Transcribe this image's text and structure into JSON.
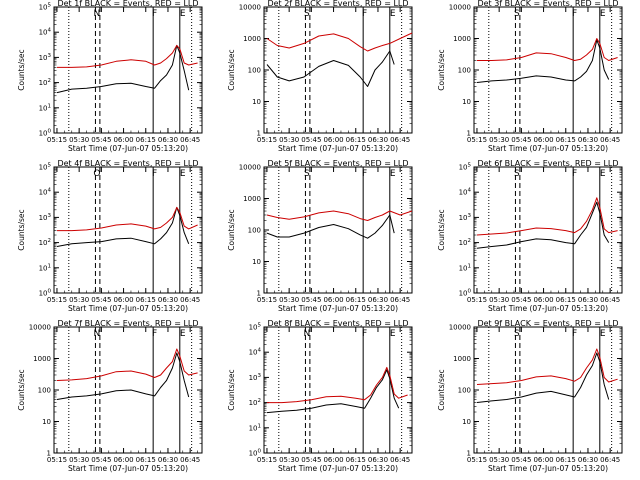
{
  "chart_data": [
    {
      "type": "line",
      "title": "Det 1f BLACK = Events, RED = LLD",
      "ylabel": "Counts/sec",
      "xlabel": "Start Time (07-Jun-07 05:13:20)",
      "yscale": "log",
      "ylim": [
        1,
        100000
      ],
      "y_tick_labels": [
        "10^0",
        "10^1",
        "10^2",
        "10^3",
        "10^4",
        "10^5"
      ],
      "x_tick_labels": [
        "05:15",
        "05:30",
        "05:45",
        "06:00",
        "06:15",
        "06:30",
        "06:45"
      ],
      "markers": [
        "N",
        "F",
        "E"
      ],
      "series": [
        {
          "color": "#000000",
          "x": [
            "05:15",
            "05:25",
            "05:35",
            "05:45",
            "05:55",
            "06:05",
            "06:15",
            "06:21",
            "06:25",
            "06:29",
            "06:33",
            "06:36",
            "06:38",
            "06:41",
            "06:44"
          ],
          "y": [
            40,
            55,
            60,
            70,
            90,
            95,
            70,
            60,
            120,
            200,
            500,
            3000,
            1500,
            300,
            50
          ]
        },
        {
          "color": "#cc0000",
          "x": [
            "05:15",
            "05:25",
            "05:35",
            "05:45",
            "05:55",
            "06:05",
            "06:15",
            "06:21",
            "06:25",
            "06:29",
            "06:33",
            "06:36",
            "06:38",
            "06:41",
            "06:44",
            "06:50"
          ],
          "y": [
            400,
            400,
            420,
            500,
            700,
            800,
            700,
            500,
            600,
            900,
            1500,
            3000,
            2200,
            600,
            500,
            600
          ]
        }
      ]
    },
    {
      "type": "line",
      "title": "Det 2f BLACK = Events, RED = LLD",
      "ylabel": "Counts/sec",
      "xlabel": "Start Time (07-Jun-07 05:13:20)",
      "yscale": "log",
      "ylim": [
        1,
        10000
      ],
      "y_tick_labels": [
        "1",
        "10",
        "100",
        "1000",
        "10000"
      ],
      "x_tick_labels": [
        "05:15",
        "05:30",
        "05:45",
        "06:00",
        "06:15",
        "06:30",
        "06:45"
      ],
      "markers": [
        "S",
        "F",
        "E"
      ],
      "series": [
        {
          "color": "#000000",
          "x": [
            "05:15",
            "05:22",
            "05:30",
            "05:40",
            "05:50",
            "06:00",
            "06:10",
            "06:18",
            "06:23",
            "06:28",
            "06:33",
            "06:38",
            "06:41"
          ],
          "y": [
            150,
            60,
            45,
            60,
            130,
            200,
            140,
            60,
            30,
            100,
            180,
            400,
            150
          ]
        },
        {
          "color": "#cc0000",
          "x": [
            "05:15",
            "05:22",
            "05:30",
            "05:40",
            "05:50",
            "06:00",
            "06:10",
            "06:18",
            "06:23",
            "06:28",
            "06:33",
            "06:38",
            "06:45",
            "06:53"
          ],
          "y": [
            1000,
            600,
            500,
            700,
            1200,
            1400,
            1000,
            550,
            400,
            500,
            600,
            700,
            1000,
            1500
          ]
        }
      ]
    },
    {
      "type": "line",
      "title": "Det 3f BLACK = Events, RED = LLD",
      "ylabel": "Counts/sec",
      "xlabel": "Start Time (07-Jun-07 05:13:20)",
      "yscale": "log",
      "ylim": [
        1,
        10000
      ],
      "y_tick_labels": [
        "1",
        "10",
        "100",
        "1000",
        "10000"
      ],
      "x_tick_labels": [
        "05:15",
        "05:30",
        "05:45",
        "06:00",
        "06:15",
        "06:30",
        "06:45"
      ],
      "markers": [
        "S",
        "F",
        "E"
      ],
      "series": [
        {
          "color": "#000000",
          "x": [
            "05:15",
            "05:25",
            "05:35",
            "05:45",
            "05:55",
            "06:05",
            "06:15",
            "06:21",
            "06:25",
            "06:29",
            "06:33",
            "06:36",
            "06:38",
            "06:41",
            "06:44"
          ],
          "y": [
            40,
            45,
            48,
            55,
            65,
            60,
            48,
            45,
            60,
            90,
            200,
            900,
            500,
            100,
            50
          ]
        },
        {
          "color": "#cc0000",
          "x": [
            "05:15",
            "05:25",
            "05:35",
            "05:45",
            "05:55",
            "06:05",
            "06:15",
            "06:21",
            "06:25",
            "06:29",
            "06:33",
            "06:36",
            "06:38",
            "06:41",
            "06:44",
            "06:50"
          ],
          "y": [
            200,
            200,
            210,
            250,
            350,
            330,
            250,
            200,
            220,
            300,
            450,
            1000,
            700,
            250,
            200,
            250
          ]
        }
      ]
    },
    {
      "type": "line",
      "title": "Det 4f BLACK = Events, RED = LLD",
      "ylabel": "Counts/sec",
      "xlabel": "Start Time (07-Jun-07 05:13:20)",
      "yscale": "log",
      "ylim": [
        1,
        100000
      ],
      "y_tick_labels": [
        "10^0",
        "10^1",
        "10^2",
        "10^3",
        "10^4",
        "10^5"
      ],
      "x_tick_labels": [
        "05:15",
        "05:30",
        "05:45",
        "06:00",
        "06:15",
        "06:30",
        "06:45"
      ],
      "markers": [
        "O",
        "F",
        "E"
      ],
      "series": [
        {
          "color": "#000000",
          "x": [
            "05:15",
            "05:25",
            "05:35",
            "05:45",
            "05:55",
            "06:05",
            "06:15",
            "06:21",
            "06:25",
            "06:29",
            "06:33",
            "06:36",
            "06:38",
            "06:41",
            "06:44"
          ],
          "y": [
            70,
            90,
            100,
            110,
            140,
            150,
            110,
            90,
            140,
            250,
            600,
            2500,
            1200,
            250,
            90
          ]
        },
        {
          "color": "#cc0000",
          "x": [
            "05:15",
            "05:25",
            "05:35",
            "05:45",
            "05:55",
            "06:05",
            "06:15",
            "06:21",
            "06:25",
            "06:29",
            "06:33",
            "06:36",
            "06:38",
            "06:41",
            "06:44",
            "06:50"
          ],
          "y": [
            300,
            300,
            320,
            380,
            500,
            550,
            450,
            350,
            400,
            600,
            1000,
            2500,
            1600,
            450,
            350,
            500
          ]
        }
      ]
    },
    {
      "type": "line",
      "title": "Det 5f BLACK = Events, RED = LLD",
      "ylabel": "Counts/sec",
      "xlabel": "Start Time (07-Jun-07 05:13:20)",
      "yscale": "log",
      "ylim": [
        1,
        10000
      ],
      "y_tick_labels": [
        "1",
        "10",
        "100",
        "1000",
        "10000"
      ],
      "x_tick_labels": [
        "05:15",
        "05:30",
        "05:45",
        "06:00",
        "06:15",
        "06:30",
        "06:45"
      ],
      "markers": [
        "S",
        "F",
        "E"
      ],
      "series": [
        {
          "color": "#000000",
          "x": [
            "05:15",
            "05:22",
            "05:30",
            "05:40",
            "05:50",
            "06:00",
            "06:10",
            "06:18",
            "06:23",
            "06:28",
            "06:33",
            "06:38",
            "06:41"
          ],
          "y": [
            80,
            60,
            60,
            80,
            120,
            150,
            110,
            70,
            55,
            80,
            140,
            300,
            80
          ]
        },
        {
          "color": "#cc0000",
          "x": [
            "05:15",
            "05:22",
            "05:30",
            "05:40",
            "05:50",
            "06:00",
            "06:10",
            "06:18",
            "06:23",
            "06:28",
            "06:33",
            "06:38",
            "06:45",
            "06:53"
          ],
          "y": [
            300,
            250,
            220,
            260,
            350,
            400,
            330,
            230,
            200,
            250,
            300,
            400,
            300,
            400
          ]
        }
      ]
    },
    {
      "type": "line",
      "title": "Det 6f BLACK = Events, RED = LLD",
      "ylabel": "Counts/sec",
      "xlabel": "Start Time (07-Jun-07 05:13:20)",
      "yscale": "log",
      "ylim": [
        1,
        100000
      ],
      "y_tick_labels": [
        "10^0",
        "10^1",
        "10^2",
        "10^3",
        "10^4",
        "10^5"
      ],
      "x_tick_labels": [
        "05:15",
        "05:30",
        "05:45",
        "06:00",
        "06:15",
        "06:30",
        "06:45"
      ],
      "markers": [
        "S",
        "F",
        "E"
      ],
      "series": [
        {
          "color": "#000000",
          "x": [
            "05:15",
            "05:25",
            "05:35",
            "05:45",
            "05:55",
            "06:05",
            "06:15",
            "06:21",
            "06:25",
            "06:29",
            "06:33",
            "06:36",
            "06:38",
            "06:41",
            "06:44"
          ],
          "y": [
            60,
            70,
            80,
            110,
            140,
            130,
            100,
            90,
            200,
            400,
            1500,
            4000,
            1500,
            200,
            100
          ]
        },
        {
          "color": "#cc0000",
          "x": [
            "05:15",
            "05:25",
            "05:35",
            "05:45",
            "05:55",
            "06:05",
            "06:15",
            "06:21",
            "06:25",
            "06:29",
            "06:33",
            "06:36",
            "06:38",
            "06:41",
            "06:44",
            "06:50"
          ],
          "y": [
            200,
            220,
            240,
            300,
            380,
            360,
            300,
            250,
            350,
            700,
            2000,
            6000,
            2500,
            350,
            250,
            300
          ]
        }
      ]
    },
    {
      "type": "line",
      "title": "Det 7f BLACK = Events, RED = LLD",
      "ylabel": "Counts/sec",
      "xlabel": "Start Time (07-Jun-07 05:13:20)",
      "yscale": "log",
      "ylim": [
        1,
        10000
      ],
      "y_tick_labels": [
        "1",
        "10",
        "100",
        "1000",
        "10000"
      ],
      "x_tick_labels": [
        "05:15",
        "05:30",
        "05:45",
        "06:00",
        "06:15",
        "06:30",
        "06:45"
      ],
      "markers": [
        "N",
        "F",
        "E"
      ],
      "series": [
        {
          "color": "#000000",
          "x": [
            "05:15",
            "05:25",
            "05:35",
            "05:45",
            "05:55",
            "06:05",
            "06:15",
            "06:21",
            "06:25",
            "06:29",
            "06:33",
            "06:36",
            "06:38",
            "06:41",
            "06:44"
          ],
          "y": [
            50,
            60,
            65,
            75,
            95,
            100,
            75,
            65,
            120,
            200,
            500,
            1500,
            800,
            200,
            60
          ]
        },
        {
          "color": "#cc0000",
          "x": [
            "05:15",
            "05:25",
            "05:35",
            "05:45",
            "05:55",
            "06:05",
            "06:15",
            "06:21",
            "06:25",
            "06:29",
            "06:33",
            "06:36",
            "06:38",
            "06:41",
            "06:44",
            "06:50"
          ],
          "y": [
            200,
            210,
            230,
            280,
            380,
            400,
            320,
            250,
            300,
            500,
            800,
            2000,
            1200,
            400,
            300,
            350
          ]
        }
      ]
    },
    {
      "type": "line",
      "title": "Det 8f BLACK = Events, RED = LLD",
      "ylabel": "Counts/sec",
      "xlabel": "Start Time (07-Jun-07 05:13:20)",
      "yscale": "log",
      "ylim": [
        1,
        100000
      ],
      "y_tick_labels": [
        "10^0",
        "10^1",
        "10^2",
        "10^3",
        "10^4",
        "10^5"
      ],
      "x_tick_labels": [
        "05:15",
        "05:30",
        "05:45",
        "06:00",
        "06:15",
        "06:30",
        "06:45"
      ],
      "markers": [
        "N",
        "F",
        "E"
      ],
      "series": [
        {
          "color": "#000000",
          "x": [
            "05:15",
            "05:25",
            "05:35",
            "05:45",
            "05:55",
            "06:05",
            "06:15",
            "06:21",
            "06:25",
            "06:29",
            "06:33",
            "06:36",
            "06:38",
            "06:41",
            "06:44"
          ],
          "y": [
            40,
            45,
            50,
            60,
            80,
            90,
            70,
            60,
            150,
            400,
            800,
            2000,
            900,
            150,
            60
          ]
        },
        {
          "color": "#cc0000",
          "x": [
            "05:15",
            "05:25",
            "05:35",
            "05:45",
            "05:55",
            "06:05",
            "06:15",
            "06:21",
            "06:25",
            "06:29",
            "06:33",
            "06:36",
            "06:38",
            "06:41",
            "06:44",
            "06:50"
          ],
          "y": [
            100,
            100,
            110,
            130,
            170,
            180,
            150,
            130,
            200,
            500,
            1000,
            2500,
            1200,
            220,
            150,
            200
          ]
        }
      ]
    },
    {
      "type": "line",
      "title": "Det 9f BLACK = Events, RED = LLD",
      "ylabel": "Counts/sec",
      "xlabel": "Start Time (07-Jun-07 05:13:20)",
      "yscale": "log",
      "ylim": [
        1,
        10000
      ],
      "y_tick_labels": [
        "1",
        "10",
        "100",
        "1000",
        "10000"
      ],
      "x_tick_labels": [
        "05:15",
        "05:30",
        "05:45",
        "06:00",
        "06:15",
        "06:30",
        "06:45"
      ],
      "markers": [
        "S",
        "F",
        "E"
      ],
      "series": [
        {
          "color": "#000000",
          "x": [
            "05:15",
            "05:25",
            "05:35",
            "05:45",
            "05:55",
            "06:05",
            "06:15",
            "06:21",
            "06:25",
            "06:29",
            "06:33",
            "06:36",
            "06:38",
            "06:41",
            "06:44"
          ],
          "y": [
            40,
            45,
            50,
            60,
            80,
            90,
            70,
            60,
            120,
            300,
            600,
            1500,
            800,
            150,
            50
          ]
        },
        {
          "color": "#cc0000",
          "x": [
            "05:15",
            "05:25",
            "05:35",
            "05:45",
            "05:55",
            "06:05",
            "06:15",
            "06:21",
            "06:25",
            "06:29",
            "06:33",
            "06:36",
            "06:38",
            "06:41",
            "06:44",
            "06:50"
          ],
          "y": [
            150,
            160,
            170,
            200,
            260,
            280,
            230,
            190,
            250,
            500,
            900,
            2000,
            1100,
            250,
            180,
            220
          ]
        }
      ]
    }
  ]
}
